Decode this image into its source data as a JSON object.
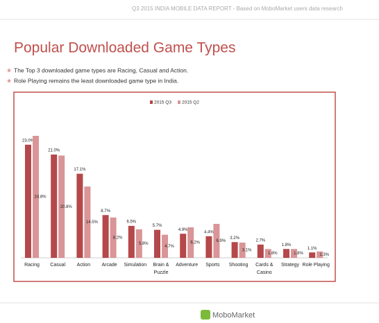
{
  "header": {
    "report": "Q3 2015 INDIA  MOBILE DATA REPORT - Based on MoboMarket users data research"
  },
  "title": "Popular Downloaded Game Types",
  "bullets": [
    "The Top 3 downloaded game types are Racing, Casual and Action.",
    "Role Playing remains the least downloaded game type in India."
  ],
  "footer": {
    "logo": "MoboMarket"
  },
  "chart_data": {
    "type": "bar",
    "categories": [
      "Racing",
      "Casual",
      "Action",
      "Arcade",
      "Simulation",
      "Brain & Puzzle",
      "Adventure",
      "Sports",
      "Shooting",
      "Cards & Casino",
      "Strategy",
      "Role Playing"
    ],
    "series": [
      {
        "name": "2015 Q3",
        "color": "#b5484a",
        "values": [
          23.0,
          21.0,
          17.1,
          8.7,
          6.5,
          5.7,
          4.9,
          4.4,
          3.2,
          2.7,
          1.8,
          1.1
        ],
        "value_labels": [
          "23.0%",
          "21.0%",
          "17.1%",
          "8.7%",
          "6.5%",
          "5.7%",
          "4.9%",
          "4.4%",
          "3.2%",
          "2.7%",
          "1.8%",
          "1.1%"
        ]
      },
      {
        "name": "2015 Q2",
        "color": "#d99597",
        "values": [
          24.8,
          20.8,
          14.5,
          8.2,
          5.8,
          4.7,
          6.2,
          6.9,
          3.1,
          1.8,
          1.8,
          1.3
        ],
        "value_labels": [
          "24.8%",
          "20.8%",
          "14.5%",
          "8.2%",
          "5.8%",
          "4.7%",
          "6.2%",
          "6.9%",
          "3.1%",
          "1.8%",
          "1.8%",
          "1.3%"
        ]
      }
    ],
    "legend": "top"
  }
}
